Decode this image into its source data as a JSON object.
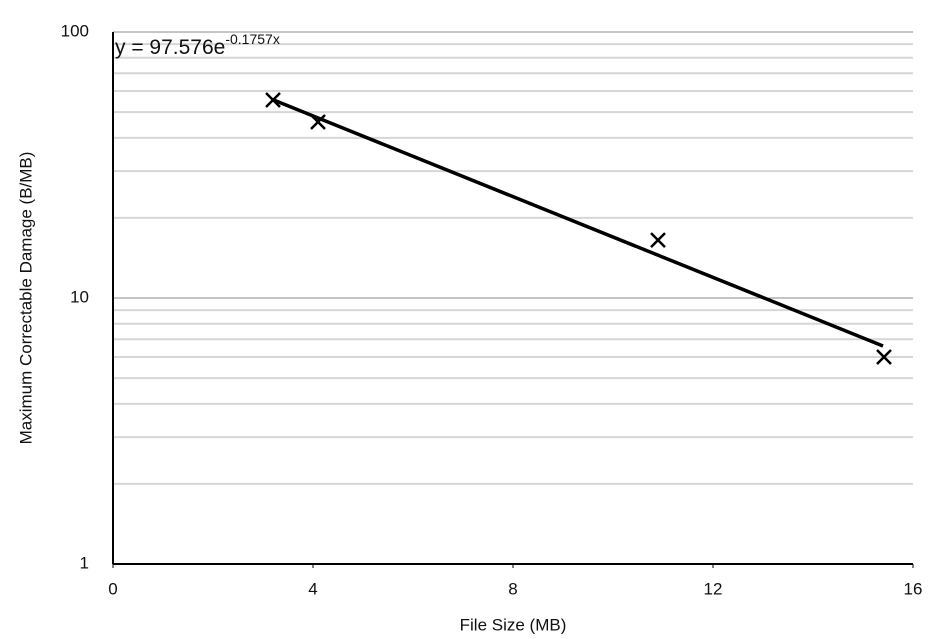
{
  "chart_data": {
    "type": "scatter",
    "xlabel": "File Size (MB)",
    "ylabel": "Maximum Correctable Damage (B/MB)",
    "x": [
      3.2,
      4.1,
      10.9,
      15.42
    ],
    "values": [
      55.5,
      45.9,
      16.5,
      6.0
    ],
    "color": "#000000",
    "xlim": [
      0,
      16
    ],
    "xticks": [
      0,
      4,
      8,
      12,
      16
    ],
    "ylim": [
      1,
      100
    ],
    "yticks": [
      1,
      10,
      100
    ],
    "yminor": [
      2,
      3,
      4,
      5,
      6,
      7,
      8,
      9,
      20,
      30,
      40,
      50,
      60,
      70,
      80,
      90
    ],
    "log_y": true,
    "grid": true,
    "trendline": {
      "x": [
        3.2,
        15.4
      ],
      "values": [
        55.6,
        6.6
      ]
    },
    "annotation": {
      "text": "y = 97.576e",
      "superscript": "-0.1757x"
    }
  }
}
